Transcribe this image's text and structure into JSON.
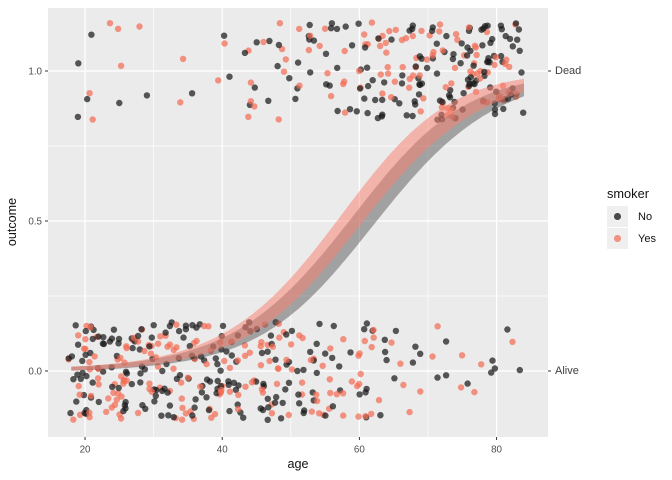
{
  "chart_data": {
    "type": "scatter",
    "title": "",
    "xlabel": "age",
    "ylabel": "outcome",
    "x_axis": {
      "ticks": [
        20,
        40,
        60,
        80
      ],
      "tick_labels": [
        "20",
        "40",
        "60",
        "80"
      ],
      "minor_ticks": [
        30,
        50,
        70
      ],
      "range": [
        14.6,
        87.5
      ]
    },
    "y_axis": {
      "ticks": [
        0,
        0.5,
        1
      ],
      "tick_labels": [
        "0.0",
        "0.5",
        "1.0"
      ],
      "minor_ticks": [
        0.25,
        0.75
      ],
      "range": [
        -0.22,
        1.21
      ]
    },
    "secondary_y_labels": [
      {
        "label": "Dead",
        "value": 1
      },
      {
        "label": "Alive",
        "value": 0
      }
    ],
    "legend": {
      "title": "smoker",
      "position": "right",
      "items": [
        {
          "label": "No"
        },
        {
          "label": "Yes"
        }
      ]
    },
    "series": [
      {
        "name": "No",
        "point_count": 352,
        "point_color": "rgba(25,25,25,0.72)",
        "ribbon_color": "rgba(70,70,70,0.45)",
        "key_color": "#4A4A4A",
        "logistic_fit": {
          "midpoint_age": 60.5,
          "slope": 0.115
        }
      },
      {
        "name": "Yes",
        "point_count": 288,
        "point_color": "rgba(242,108,84,0.72)",
        "ribbon_color": "rgba(250,128,114,0.52)",
        "key_color": "#F0917F",
        "logistic_fit": {
          "midpoint_age": 58.6,
          "slope": 0.118
        }
      }
    ],
    "outcome_encoding": {
      "Dead": 1,
      "Alive": 0
    },
    "jitter": {
      "seed": 20,
      "age_min": 18,
      "age_max": 84,
      "x_jitter": 0.42,
      "y_jitter": 0.163,
      "point_radius": 3.2,
      "death_prob_floor": 0.04,
      "death_prob_ceiling": 0.96
    },
    "ribbon_halfwidth": {
      "base": 0.006,
      "peak": 0.052,
      "peak_age": 61.5,
      "gauss_denom": 420
    },
    "grid": {
      "major": true,
      "minor": true
    },
    "style": {
      "panel_bg": "#EBEBEB",
      "grid_color": "#FFFFFF",
      "tick_mark_color": "#333333",
      "tick_text_color": "#4D4D4D",
      "axis_title_color": "#111111",
      "secondary_label_color": "#404040",
      "outer_bg": "#FFFFFF",
      "legend_key_bg": "#EFEFEF"
    }
  }
}
